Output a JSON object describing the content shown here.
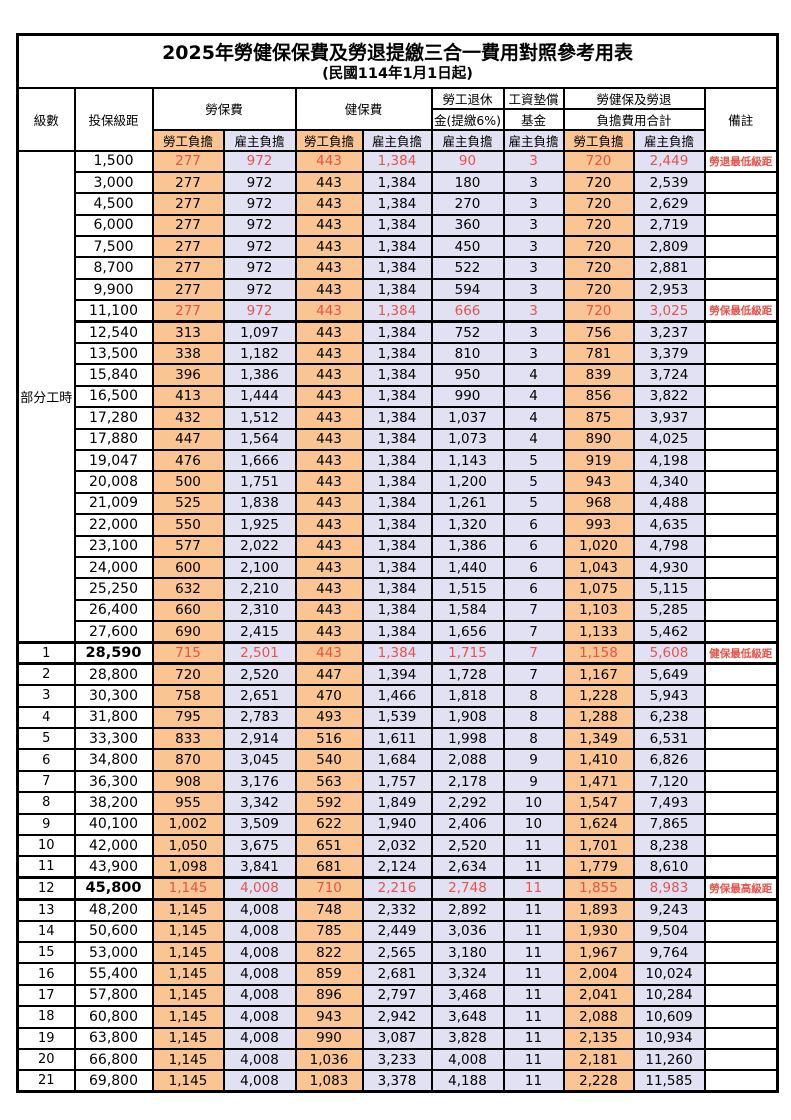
{
  "title": "2025年勞健保保費及勞退提繳三合一費用對照參考用表",
  "subtitle": "(民國114年1月1日起)",
  "colors": {
    "employee_bg": "#FAC493",
    "employer_bg": "#E2E1F3",
    "highlight_text": "#E2544C"
  },
  "header": {
    "level": "級數",
    "bracket": "投保級距",
    "labor_fee": "勞保費",
    "health_fee": "健保費",
    "pension_line1": "勞工退休",
    "pension_line2": "金(提繳6%)",
    "wage_fund_line1": "工資墊償",
    "wage_fund_line2": "基金",
    "total_line1": "勞健保及勞退",
    "total_line2": "負擔費用合計",
    "note": "備註",
    "employee_share": "勞工負擔",
    "employer_share": "雇主負擔"
  },
  "table": {
    "group": {
      "label": "部分工時",
      "span": 23
    },
    "rows": [
      {
        "level": "",
        "bracket": "1,500",
        "v": [
          "277",
          "972",
          "443",
          "1,384",
          "90",
          "3",
          "720",
          "2,449"
        ],
        "note": "勞退最低級距",
        "red": true
      },
      {
        "level": "",
        "bracket": "3,000",
        "v": [
          "277",
          "972",
          "443",
          "1,384",
          "180",
          "3",
          "720",
          "2,539"
        ],
        "note": ""
      },
      {
        "level": "",
        "bracket": "4,500",
        "v": [
          "277",
          "972",
          "443",
          "1,384",
          "270",
          "3",
          "720",
          "2,629"
        ],
        "note": ""
      },
      {
        "level": "",
        "bracket": "6,000",
        "v": [
          "277",
          "972",
          "443",
          "1,384",
          "360",
          "3",
          "720",
          "2,719"
        ],
        "note": ""
      },
      {
        "level": "",
        "bracket": "7,500",
        "v": [
          "277",
          "972",
          "443",
          "1,384",
          "450",
          "3",
          "720",
          "2,809"
        ],
        "note": ""
      },
      {
        "level": "",
        "bracket": "8,700",
        "v": [
          "277",
          "972",
          "443",
          "1,384",
          "522",
          "3",
          "720",
          "2,881"
        ],
        "note": ""
      },
      {
        "level": "",
        "bracket": "9,900",
        "v": [
          "277",
          "972",
          "443",
          "1,384",
          "594",
          "3",
          "720",
          "2,953"
        ],
        "note": ""
      },
      {
        "level": "",
        "bracket": "11,100",
        "v": [
          "277",
          "972",
          "443",
          "1,384",
          "666",
          "3",
          "720",
          "3,025"
        ],
        "note": "勞保最低級距",
        "red": true
      },
      {
        "level": "",
        "bracket": "12,540",
        "v": [
          "313",
          "1,097",
          "443",
          "1,384",
          "752",
          "3",
          "756",
          "3,237"
        ],
        "note": "",
        "sep": true
      },
      {
        "level": "",
        "bracket": "13,500",
        "v": [
          "338",
          "1,182",
          "443",
          "1,384",
          "810",
          "3",
          "781",
          "3,379"
        ],
        "note": ""
      },
      {
        "level": "",
        "bracket": "15,840",
        "v": [
          "396",
          "1,386",
          "443",
          "1,384",
          "950",
          "4",
          "839",
          "3,724"
        ],
        "note": ""
      },
      {
        "level": "",
        "bracket": "16,500",
        "v": [
          "413",
          "1,444",
          "443",
          "1,384",
          "990",
          "4",
          "856",
          "3,822"
        ],
        "note": ""
      },
      {
        "level": "",
        "bracket": "17,280",
        "v": [
          "432",
          "1,512",
          "443",
          "1,384",
          "1,037",
          "4",
          "875",
          "3,937"
        ],
        "note": ""
      },
      {
        "level": "",
        "bracket": "17,880",
        "v": [
          "447",
          "1,564",
          "443",
          "1,384",
          "1,073",
          "4",
          "890",
          "4,025"
        ],
        "note": ""
      },
      {
        "level": "",
        "bracket": "19,047",
        "v": [
          "476",
          "1,666",
          "443",
          "1,384",
          "1,143",
          "5",
          "919",
          "4,198"
        ],
        "note": ""
      },
      {
        "level": "",
        "bracket": "20,008",
        "v": [
          "500",
          "1,751",
          "443",
          "1,384",
          "1,200",
          "5",
          "943",
          "4,340"
        ],
        "note": ""
      },
      {
        "level": "",
        "bracket": "21,009",
        "v": [
          "525",
          "1,838",
          "443",
          "1,384",
          "1,261",
          "5",
          "968",
          "4,488"
        ],
        "note": ""
      },
      {
        "level": "",
        "bracket": "22,000",
        "v": [
          "550",
          "1,925",
          "443",
          "1,384",
          "1,320",
          "6",
          "993",
          "4,635"
        ],
        "note": ""
      },
      {
        "level": "",
        "bracket": "23,100",
        "v": [
          "577",
          "2,022",
          "443",
          "1,384",
          "1,386",
          "6",
          "1,020",
          "4,798"
        ],
        "note": ""
      },
      {
        "level": "",
        "bracket": "24,000",
        "v": [
          "600",
          "2,100",
          "443",
          "1,384",
          "1,440",
          "6",
          "1,043",
          "4,930"
        ],
        "note": ""
      },
      {
        "level": "",
        "bracket": "25,250",
        "v": [
          "632",
          "2,210",
          "443",
          "1,384",
          "1,515",
          "6",
          "1,075",
          "5,115"
        ],
        "note": ""
      },
      {
        "level": "",
        "bracket": "26,400",
        "v": [
          "660",
          "2,310",
          "443",
          "1,384",
          "1,584",
          "7",
          "1,103",
          "5,285"
        ],
        "note": ""
      },
      {
        "level": "",
        "bracket": "27,600",
        "v": [
          "690",
          "2,415",
          "443",
          "1,384",
          "1,656",
          "7",
          "1,133",
          "5,462"
        ],
        "note": ""
      },
      {
        "level": "1",
        "bracket": "28,590",
        "v": [
          "715",
          "2,501",
          "443",
          "1,384",
          "1,715",
          "7",
          "1,158",
          "5,608"
        ],
        "note": "健保最低級距",
        "red": true,
        "band": true,
        "bold": true
      },
      {
        "level": "2",
        "bracket": "28,800",
        "v": [
          "720",
          "2,520",
          "447",
          "1,394",
          "1,728",
          "7",
          "1,167",
          "5,649"
        ],
        "note": ""
      },
      {
        "level": "3",
        "bracket": "30,300",
        "v": [
          "758",
          "2,651",
          "470",
          "1,466",
          "1,818",
          "8",
          "1,228",
          "5,943"
        ],
        "note": ""
      },
      {
        "level": "4",
        "bracket": "31,800",
        "v": [
          "795",
          "2,783",
          "493",
          "1,539",
          "1,908",
          "8",
          "1,288",
          "6,238"
        ],
        "note": ""
      },
      {
        "level": "5",
        "bracket": "33,300",
        "v": [
          "833",
          "2,914",
          "516",
          "1,611",
          "1,998",
          "8",
          "1,349",
          "6,531"
        ],
        "note": ""
      },
      {
        "level": "6",
        "bracket": "34,800",
        "v": [
          "870",
          "3,045",
          "540",
          "1,684",
          "2,088",
          "9",
          "1,410",
          "6,826"
        ],
        "note": ""
      },
      {
        "level": "7",
        "bracket": "36,300",
        "v": [
          "908",
          "3,176",
          "563",
          "1,757",
          "2,178",
          "9",
          "1,471",
          "7,120"
        ],
        "note": ""
      },
      {
        "level": "8",
        "bracket": "38,200",
        "v": [
          "955",
          "3,342",
          "592",
          "1,849",
          "2,292",
          "10",
          "1,547",
          "7,493"
        ],
        "note": ""
      },
      {
        "level": "9",
        "bracket": "40,100",
        "v": [
          "1,002",
          "3,509",
          "622",
          "1,940",
          "2,406",
          "10",
          "1,624",
          "7,865"
        ],
        "note": ""
      },
      {
        "level": "10",
        "bracket": "42,000",
        "v": [
          "1,050",
          "3,675",
          "651",
          "2,032",
          "2,520",
          "11",
          "1,701",
          "8,238"
        ],
        "note": ""
      },
      {
        "level": "11",
        "bracket": "43,900",
        "v": [
          "1,098",
          "3,841",
          "681",
          "2,124",
          "2,634",
          "11",
          "1,779",
          "8,610"
        ],
        "note": ""
      },
      {
        "level": "12",
        "bracket": "45,800",
        "v": [
          "1,145",
          "4,008",
          "710",
          "2,216",
          "2,748",
          "11",
          "1,855",
          "8,983"
        ],
        "note": "勞保最高級距",
        "red": true,
        "band": true,
        "bold": true
      },
      {
        "level": "13",
        "bracket": "48,200",
        "v": [
          "1,145",
          "4,008",
          "748",
          "2,332",
          "2,892",
          "11",
          "1,893",
          "9,243"
        ],
        "note": ""
      },
      {
        "level": "14",
        "bracket": "50,600",
        "v": [
          "1,145",
          "4,008",
          "785",
          "2,449",
          "3,036",
          "11",
          "1,930",
          "9,504"
        ],
        "note": ""
      },
      {
        "level": "15",
        "bracket": "53,000",
        "v": [
          "1,145",
          "4,008",
          "822",
          "2,565",
          "3,180",
          "11",
          "1,967",
          "9,764"
        ],
        "note": ""
      },
      {
        "level": "16",
        "bracket": "55,400",
        "v": [
          "1,145",
          "4,008",
          "859",
          "2,681",
          "3,324",
          "11",
          "2,004",
          "10,024"
        ],
        "note": ""
      },
      {
        "level": "17",
        "bracket": "57,800",
        "v": [
          "1,145",
          "4,008",
          "896",
          "2,797",
          "3,468",
          "11",
          "2,041",
          "10,284"
        ],
        "note": ""
      },
      {
        "level": "18",
        "bracket": "60,800",
        "v": [
          "1,145",
          "4,008",
          "943",
          "2,942",
          "3,648",
          "11",
          "2,088",
          "10,609"
        ],
        "note": ""
      },
      {
        "level": "19",
        "bracket": "63,800",
        "v": [
          "1,145",
          "4,008",
          "990",
          "3,087",
          "3,828",
          "11",
          "2,135",
          "10,934"
        ],
        "note": ""
      },
      {
        "level": "20",
        "bracket": "66,800",
        "v": [
          "1,145",
          "4,008",
          "1,036",
          "3,233",
          "4,008",
          "11",
          "2,181",
          "11,260"
        ],
        "note": ""
      },
      {
        "level": "21",
        "bracket": "69,800",
        "v": [
          "1,145",
          "4,008",
          "1,083",
          "3,378",
          "4,188",
          "11",
          "2,228",
          "11,585"
        ],
        "note": ""
      }
    ]
  }
}
